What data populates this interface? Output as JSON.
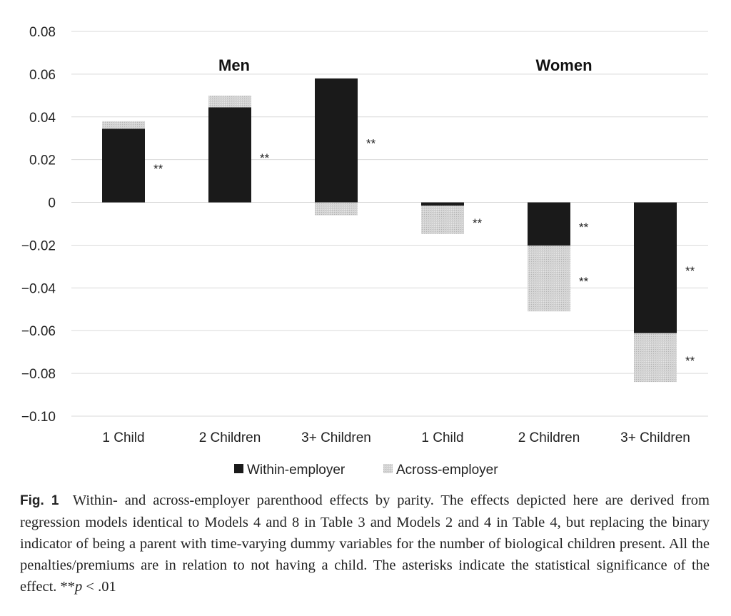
{
  "chart_data": {
    "type": "bar",
    "stacked": true,
    "groups": [
      "Men",
      "Women"
    ],
    "categories": [
      "1 Child",
      "2 Children",
      "3+ Children",
      "1 Child",
      "2 Children",
      "3+ Children"
    ],
    "series": [
      {
        "name": "Within-employer",
        "color": "#1a1a1a",
        "values": [
          0.0345,
          0.0445,
          0.058,
          -0.0015,
          -0.0202,
          -0.0612
        ]
      },
      {
        "name": "Across-employer",
        "color": "#cfcfcf",
        "values": [
          0.0035,
          0.0055,
          -0.006,
          -0.0133,
          -0.0308,
          -0.0228
        ]
      }
    ],
    "significance": {
      "Within-employer": [
        "**",
        "**",
        "**",
        "",
        "**",
        "**"
      ],
      "Across-employer": [
        "",
        "",
        "",
        "**",
        "**",
        "**"
      ]
    },
    "ylim": [
      -0.1,
      0.08
    ],
    "yticks": [
      "0.08",
      "0.06",
      "0.04",
      "0.02",
      "0",
      "−0.02",
      "−0.04",
      "−0.06",
      "−0.08",
      "−0.10"
    ],
    "grid": true,
    "legend_position": "bottom"
  },
  "caption": {
    "fig_label": "Fig. 1",
    "text": "Within- and across-employer parenthood effects by parity. The effects depicted here are derived from regression models identical to Models 4 and 8 in Table 3 and Models 2 and 4 in Table 4, but replacing the binary indicator of being a parent with time-varying dummy variables for the number of biological children present. All the penalties/premiums are in relation to not having a child. The asterisks indicate the statistical significance of the effect. **",
    "p_symbol": "p",
    "p_tail": " < .01"
  }
}
